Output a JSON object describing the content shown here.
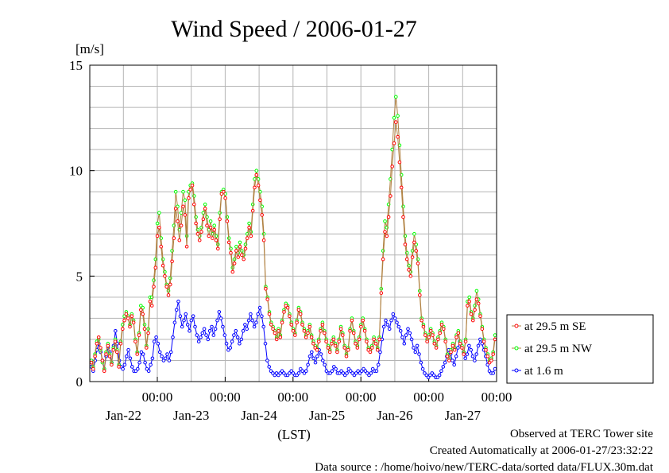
{
  "chart_data": {
    "type": "line",
    "title": "Wind Speed / 2006-01-27",
    "ylabel": "[m/s]",
    "xlabel": "(LST)",
    "ylim": [
      0,
      15
    ],
    "y_ticks": [
      "0",
      "5",
      "10",
      "15"
    ],
    "x_ticks": [
      {
        "time": "00:00",
        "date": "Jan-22"
      },
      {
        "time": "00:00",
        "date": "Jan-23"
      },
      {
        "time": "00:00",
        "date": "Jan-24"
      },
      {
        "time": "00:00",
        "date": "Jan-25"
      },
      {
        "time": "00:00",
        "date": "Jan-26"
      },
      {
        "time": "00:00",
        "date": "Jan-27"
      }
    ],
    "grid": true,
    "legend_position": "right",
    "series": [
      {
        "name": "at 29.5 m SE",
        "color": "#ff0000",
        "line_color": "#b08040",
        "values": [
          0.9,
          0.6,
          1.2,
          1.8,
          2.1,
          1.6,
          1.0,
          0.5,
          1.3,
          1.7,
          1.2,
          0.8,
          1.5,
          1.9,
          1.4,
          0.7,
          1.8,
          2.5,
          2.9,
          3.2,
          3.0,
          2.6,
          3.1,
          2.8,
          1.9,
          1.3,
          2.2,
          3.4,
          3.2,
          2.5,
          1.6,
          2.3,
          3.8,
          3.6,
          4.5,
          5.4,
          6.9,
          7.3,
          6.4,
          5.5,
          5.0,
          4.5,
          4.1,
          4.6,
          5.7,
          6.8,
          8.2,
          7.6,
          6.7,
          7.4,
          8.3,
          7.9,
          6.4,
          8.7,
          9.1,
          9.3,
          8.4,
          7.5,
          7.0,
          6.7,
          7.1,
          7.7,
          8.2,
          7.4,
          6.9,
          7.3,
          6.8,
          7.2,
          6.7,
          6.3,
          7.7,
          8.9,
          9.0,
          8.7,
          7.6,
          6.6,
          6.1,
          5.2,
          5.6,
          6.2,
          5.9,
          6.4,
          6.0,
          5.8,
          6.3,
          6.8,
          7.3,
          6.9,
          8.1,
          9.2,
          9.8,
          9.3,
          8.6,
          7.9,
          6.7,
          4.4,
          3.9,
          3.2,
          2.7,
          2.5,
          2.3,
          2.0,
          2.4,
          2.1,
          2.8,
          3.3,
          3.6,
          3.5,
          3.1,
          2.7,
          2.4,
          2.2,
          2.8,
          3.4,
          3.2,
          2.7,
          2.4,
          2.1,
          2.3,
          2.6,
          2.1,
          1.8,
          1.6,
          1.5,
          1.9,
          2.4,
          2.7,
          2.3,
          1.9,
          1.6,
          1.4,
          1.8,
          2.0,
          1.7,
          1.4,
          1.9,
          2.5,
          2.2,
          1.6,
          1.2,
          1.5,
          2.4,
          2.9,
          2.3,
          1.8,
          1.6,
          2.0,
          2.6,
          2.9,
          2.4,
          1.9,
          1.5,
          1.4,
          1.6,
          2.0,
          1.8,
          1.5,
          2.0,
          4.2,
          5.8,
          7.1,
          6.9,
          7.8,
          8.8,
          10.2,
          11.3,
          12.3,
          11.6,
          10.4,
          9.2,
          7.8,
          6.5,
          5.8,
          5.3,
          5.0,
          5.9,
          6.6,
          6.2,
          5.6,
          4.1,
          2.9,
          2.6,
          2.2,
          1.9,
          2.1,
          2.4,
          2.2,
          1.8,
          1.6,
          2.0,
          2.3,
          2.7,
          2.5,
          1.9,
          1.2,
          1.0,
          1.4,
          1.7,
          1.5,
          2.1,
          2.3,
          1.8,
          1.6,
          1.3,
          1.9,
          3.6,
          3.8,
          3.2,
          2.9,
          3.4,
          3.9,
          3.7,
          3.1,
          2.5,
          1.9,
          1.5,
          1.2,
          0.9,
          1.0,
          1.3,
          2.0
        ]
      },
      {
        "name": "at 29.5 m NW",
        "color": "#00ff00",
        "line_color": "#b08040",
        "values": [
          1.0,
          0.7,
          1.3,
          1.9,
          2.0,
          1.5,
          0.9,
          0.6,
          1.4,
          1.8,
          1.3,
          0.9,
          1.6,
          2.0,
          1.5,
          0.8,
          1.9,
          2.7,
          3.1,
          3.3,
          3.1,
          2.7,
          3.2,
          2.9,
          2.0,
          1.4,
          2.3,
          3.6,
          3.5,
          2.7,
          1.7,
          2.5,
          4.0,
          4.0,
          4.8,
          5.8,
          7.5,
          8.0,
          6.8,
          5.8,
          5.2,
          4.6,
          4.3,
          4.9,
          6.2,
          7.4,
          9.0,
          8.3,
          7.2,
          8.0,
          9.0,
          8.6,
          6.9,
          9.0,
          9.3,
          9.4,
          8.8,
          7.8,
          7.2,
          6.9,
          7.3,
          8.0,
          8.4,
          7.8,
          7.2,
          7.6,
          7.0,
          7.4,
          6.9,
          6.5,
          8.0,
          9.0,
          9.1,
          8.9,
          7.8,
          6.8,
          6.3,
          5.4,
          5.8,
          6.4,
          6.1,
          6.6,
          6.2,
          6.0,
          6.5,
          7.0,
          7.5,
          7.1,
          8.4,
          9.6,
          10.0,
          9.6,
          9.0,
          8.3,
          7.0,
          4.5,
          4.0,
          3.3,
          2.8,
          2.6,
          2.4,
          2.1,
          2.5,
          2.2,
          2.9,
          3.4,
          3.7,
          3.6,
          3.2,
          2.8,
          2.5,
          2.3,
          2.9,
          3.5,
          3.3,
          2.8,
          2.5,
          2.2,
          2.4,
          2.7,
          2.2,
          1.9,
          1.7,
          1.6,
          2.0,
          2.5,
          2.8,
          2.4,
          2.0,
          1.7,
          1.5,
          1.9,
          2.1,
          1.8,
          1.5,
          2.0,
          2.6,
          2.3,
          1.7,
          1.3,
          1.6,
          2.5,
          3.0,
          2.4,
          1.9,
          1.7,
          2.1,
          2.7,
          3.0,
          2.5,
          2.0,
          1.6,
          1.5,
          1.7,
          2.1,
          1.9,
          1.6,
          2.1,
          4.4,
          6.2,
          7.6,
          7.3,
          8.4,
          9.6,
          11.0,
          12.5,
          13.5,
          12.6,
          11.2,
          9.8,
          8.3,
          6.9,
          6.1,
          5.5,
          5.2,
          6.2,
          7.0,
          6.5,
          5.8,
          4.3,
          3.0,
          2.7,
          2.3,
          2.0,
          2.2,
          2.5,
          2.3,
          1.9,
          1.7,
          2.1,
          2.4,
          2.8,
          2.6,
          2.0,
          1.3,
          1.1,
          1.5,
          1.8,
          1.6,
          2.2,
          2.4,
          1.9,
          1.7,
          1.4,
          2.0,
          3.8,
          4.0,
          3.3,
          3.0,
          3.6,
          4.3,
          3.9,
          3.2,
          2.6,
          2.0,
          1.6,
          1.3,
          1.0,
          1.1,
          1.4,
          2.2
        ]
      },
      {
        "name": "at 1.6 m",
        "color": "#0000ff",
        "line_color": "#0000ff",
        "values": [
          0.7,
          0.5,
          1.0,
          1.5,
          1.8,
          1.4,
          1.0,
          0.6,
          1.2,
          1.6,
          1.4,
          0.9,
          1.7,
          2.4,
          1.8,
          1.0,
          0.7,
          0.6,
          0.8,
          1.2,
          1.5,
          1.1,
          0.7,
          0.5,
          0.5,
          0.6,
          0.9,
          1.4,
          1.3,
          0.9,
          0.6,
          0.5,
          0.8,
          1.1,
          1.9,
          2.1,
          1.8,
          1.4,
          1.2,
          1.0,
          1.1,
          1.3,
          1.0,
          1.4,
          2.1,
          2.8,
          3.4,
          3.8,
          3.1,
          2.6,
          2.9,
          3.2,
          2.7,
          2.4,
          2.9,
          3.1,
          2.6,
          2.2,
          1.9,
          2.1,
          2.3,
          2.5,
          2.2,
          2.0,
          2.4,
          2.6,
          2.2,
          2.5,
          2.9,
          3.3,
          3.0,
          2.6,
          2.2,
          1.8,
          1.5,
          1.6,
          1.9,
          2.2,
          2.4,
          2.1,
          1.8,
          2.0,
          2.4,
          2.7,
          2.5,
          2.9,
          3.2,
          2.9,
          2.6,
          2.8,
          3.2,
          3.5,
          3.1,
          2.6,
          1.8,
          1.0,
          0.7,
          0.5,
          0.4,
          0.3,
          0.4,
          0.3,
          0.4,
          0.5,
          0.4,
          0.3,
          0.3,
          0.4,
          0.5,
          0.4,
          0.3,
          0.3,
          0.4,
          0.6,
          0.5,
          0.4,
          0.5,
          0.8,
          1.2,
          1.4,
          1.1,
          0.9,
          1.2,
          1.5,
          1.3,
          1.0,
          0.8,
          0.5,
          0.4,
          0.4,
          0.5,
          0.7,
          0.6,
          0.4,
          0.4,
          0.5,
          0.4,
          0.3,
          0.4,
          0.6,
          0.5,
          0.4,
          0.3,
          0.4,
          0.5,
          0.4,
          0.5,
          0.6,
          0.5,
          0.4,
          0.3,
          0.4,
          0.6,
          0.5,
          0.5,
          0.8,
          1.4,
          2.0,
          2.6,
          2.9,
          2.7,
          2.5,
          2.9,
          3.2,
          3.0,
          2.8,
          2.6,
          2.4,
          2.1,
          1.8,
          2.2,
          2.5,
          2.3,
          2.0,
          1.6,
          1.4,
          1.7,
          1.3,
          0.9,
          0.6,
          0.4,
          0.3,
          0.2,
          0.3,
          0.4,
          0.3,
          0.2,
          0.2,
          0.3,
          0.5,
          0.7,
          0.9,
          1.2,
          1.5,
          1.3,
          1.0,
          0.8,
          1.2,
          1.6,
          1.9,
          1.7,
          1.4,
          1.1,
          1.3,
          1.7,
          1.5,
          1.2,
          1.0,
          1.3,
          1.7,
          2.0,
          1.8,
          1.5,
          1.2,
          0.8,
          0.5,
          0.4,
          0.4,
          0.6
        ]
      }
    ]
  },
  "footer": {
    "line1": "Observed at TERC Tower site",
    "line2": "Created Automatically at 2006-01-27/23:32:22",
    "line3": "Data source : /home/hoivo/new/TERC-data/sorted  data/FLUX.30m.dat"
  }
}
